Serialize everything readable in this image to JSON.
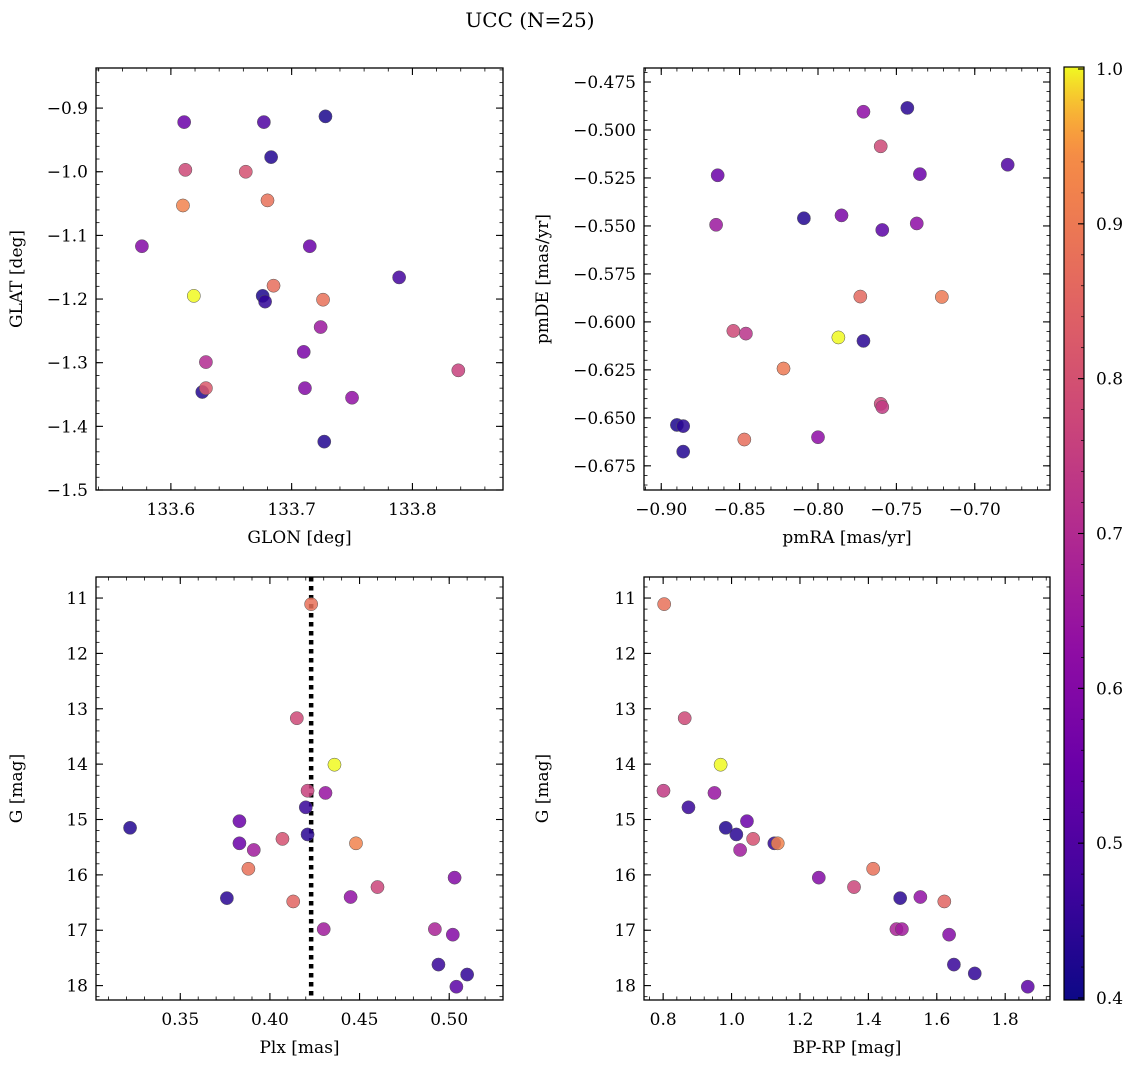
{
  "title": "UCC (N=25)",
  "colorbar": {
    "range": [
      0.4,
      1.0
    ],
    "ticks": [
      0.4,
      0.5,
      0.6,
      0.7,
      0.8,
      0.9,
      1.0
    ],
    "tick_labels": [
      "0.4",
      "0.5",
      "0.6",
      "0.7",
      "0.8",
      "0.9",
      "1.0"
    ],
    "colormap": "plasma"
  },
  "chart_data": [
    {
      "type": "scatter",
      "xlabel": "GLON [deg]",
      "ylabel": "GLAT [deg]",
      "xlim": [
        133.538,
        133.875
      ],
      "ylim": [
        -1.5,
        -0.837
      ],
      "y_inverted": false,
      "xticks": [
        133.6,
        133.7,
        133.8
      ],
      "xtick_labels": [
        "133.6",
        "133.7",
        "133.8"
      ],
      "yticks": [
        -1.5,
        -1.4,
        -1.3,
        -1.2,
        -1.1,
        -1.0,
        -0.9
      ],
      "ytick_labels": [
        "−1.5",
        "−1.4",
        "−1.3",
        "−1.2",
        "−1.1",
        "−1.0",
        "−0.9"
      ],
      "points": [
        {
          "x": 133.611,
          "y": -0.922,
          "c": 0.55
        },
        {
          "x": 133.677,
          "y": -0.922,
          "c": 0.5
        },
        {
          "x": 133.728,
          "y": -0.913,
          "c": 0.42
        },
        {
          "x": 133.683,
          "y": -0.977,
          "c": 0.43
        },
        {
          "x": 133.612,
          "y": -0.997,
          "c": 0.78
        },
        {
          "x": 133.662,
          "y": -1.0,
          "c": 0.8
        },
        {
          "x": 133.61,
          "y": -1.053,
          "c": 0.92
        },
        {
          "x": 133.68,
          "y": -1.045,
          "c": 0.88
        },
        {
          "x": 133.576,
          "y": -1.117,
          "c": 0.6
        },
        {
          "x": 133.715,
          "y": -1.117,
          "c": 0.55
        },
        {
          "x": 133.619,
          "y": -1.195,
          "c": 1.0
        },
        {
          "x": 133.676,
          "y": -1.195,
          "c": 0.42
        },
        {
          "x": 133.678,
          "y": -1.204,
          "c": 0.45
        },
        {
          "x": 133.685,
          "y": -1.179,
          "c": 0.87
        },
        {
          "x": 133.726,
          "y": -1.201,
          "c": 0.88
        },
        {
          "x": 133.789,
          "y": -1.166,
          "c": 0.48
        },
        {
          "x": 133.724,
          "y": -1.244,
          "c": 0.65
        },
        {
          "x": 133.71,
          "y": -1.283,
          "c": 0.58
        },
        {
          "x": 133.629,
          "y": -1.299,
          "c": 0.7
        },
        {
          "x": 133.838,
          "y": -1.312,
          "c": 0.76
        },
        {
          "x": 133.626,
          "y": -1.346,
          "c": 0.43
        },
        {
          "x": 133.629,
          "y": -1.34,
          "c": 0.82
        },
        {
          "x": 133.711,
          "y": -1.34,
          "c": 0.6
        },
        {
          "x": 133.75,
          "y": -1.355,
          "c": 0.63
        },
        {
          "x": 133.727,
          "y": -1.424,
          "c": 0.43
        }
      ]
    },
    {
      "type": "scatter",
      "xlabel": "pmRA [mas/yr]",
      "ylabel": "pmDE [mas/yr]",
      "xlim": [
        -0.911,
        -0.652
      ],
      "ylim": [
        -0.6876,
        -0.4677
      ],
      "y_inverted": false,
      "xticks": [
        -0.9,
        -0.85,
        -0.8,
        -0.75,
        -0.7
      ],
      "xtick_labels": [
        "−0.90",
        "−0.85",
        "−0.80",
        "−0.75",
        "−0.70"
      ],
      "yticks": [
        -0.675,
        -0.65,
        -0.625,
        -0.6,
        -0.575,
        -0.55,
        -0.525,
        -0.5,
        -0.475
      ],
      "ytick_labels": [
        "−0.675",
        "−0.650",
        "−0.625",
        "−0.600",
        "−0.575",
        "−0.550",
        "−0.525",
        "−0.500",
        "−0.475"
      ],
      "points": [
        {
          "x": -0.771,
          "y": -0.4905,
          "c": 0.62
        },
        {
          "x": -0.743,
          "y": -0.4885,
          "c": 0.44
        },
        {
          "x": -0.76,
          "y": -0.5085,
          "c": 0.78
        },
        {
          "x": -0.679,
          "y": -0.5181,
          "c": 0.5
        },
        {
          "x": -0.864,
          "y": -0.5236,
          "c": 0.55
        },
        {
          "x": -0.735,
          "y": -0.523,
          "c": 0.55
        },
        {
          "x": -0.809,
          "y": -0.546,
          "c": 0.43
        },
        {
          "x": -0.785,
          "y": -0.5445,
          "c": 0.58
        },
        {
          "x": -0.865,
          "y": -0.5494,
          "c": 0.65
        },
        {
          "x": -0.759,
          "y": -0.5521,
          "c": 0.52
        },
        {
          "x": -0.737,
          "y": -0.5487,
          "c": 0.62
        },
        {
          "x": -0.773,
          "y": -0.5868,
          "c": 0.86
        },
        {
          "x": -0.721,
          "y": -0.587,
          "c": 0.9
        },
        {
          "x": -0.854,
          "y": -0.6047,
          "c": 0.78
        },
        {
          "x": -0.846,
          "y": -0.6061,
          "c": 0.72
        },
        {
          "x": -0.787,
          "y": -0.6081,
          "c": 1.0
        },
        {
          "x": -0.771,
          "y": -0.6099,
          "c": 0.44
        },
        {
          "x": -0.822,
          "y": -0.6243,
          "c": 0.9
        },
        {
          "x": -0.76,
          "y": -0.6427,
          "c": 0.77
        },
        {
          "x": -0.759,
          "y": -0.6444,
          "c": 0.74
        },
        {
          "x": -0.89,
          "y": -0.6537,
          "c": 0.42
        },
        {
          "x": -0.886,
          "y": -0.6543,
          "c": 0.44
        },
        {
          "x": -0.8,
          "y": -0.6601,
          "c": 0.62
        },
        {
          "x": -0.847,
          "y": -0.6613,
          "c": 0.87
        },
        {
          "x": -0.886,
          "y": -0.6676,
          "c": 0.43
        }
      ]
    },
    {
      "type": "scatter",
      "xlabel": "Plx [mas]",
      "ylabel": "G [mag]",
      "xlim": [
        0.303,
        0.53
      ],
      "ylim": [
        18.26,
        10.62
      ],
      "y_inverted": true,
      "xticks": [
        0.35,
        0.4,
        0.45,
        0.5
      ],
      "xtick_labels": [
        "0.35",
        "0.40",
        "0.45",
        "0.50"
      ],
      "yticks": [
        11,
        12,
        13,
        14,
        15,
        16,
        17,
        18
      ],
      "ytick_labels": [
        "11",
        "12",
        "13",
        "14",
        "15",
        "16",
        "17",
        "18"
      ],
      "vline": {
        "x": 0.423,
        "style": "dotted"
      },
      "points": [
        {
          "x": 0.423,
          "y": 11.11,
          "c": 0.88
        },
        {
          "x": 0.415,
          "y": 13.17,
          "c": 0.78
        },
        {
          "x": 0.436,
          "y": 14.01,
          "c": 1.0
        },
        {
          "x": 0.421,
          "y": 14.48,
          "c": 0.76
        },
        {
          "x": 0.431,
          "y": 14.52,
          "c": 0.64
        },
        {
          "x": 0.42,
          "y": 14.78,
          "c": 0.46
        },
        {
          "x": 0.322,
          "y": 15.15,
          "c": 0.43
        },
        {
          "x": 0.383,
          "y": 15.03,
          "c": 0.55
        },
        {
          "x": 0.421,
          "y": 15.27,
          "c": 0.44
        },
        {
          "x": 0.407,
          "y": 15.35,
          "c": 0.8
        },
        {
          "x": 0.383,
          "y": 15.43,
          "c": 0.55
        },
        {
          "x": 0.448,
          "y": 15.43,
          "c": 0.92
        },
        {
          "x": 0.391,
          "y": 15.55,
          "c": 0.66
        },
        {
          "x": 0.388,
          "y": 15.89,
          "c": 0.88
        },
        {
          "x": 0.503,
          "y": 16.05,
          "c": 0.6
        },
        {
          "x": 0.46,
          "y": 16.22,
          "c": 0.77
        },
        {
          "x": 0.376,
          "y": 16.42,
          "c": 0.44
        },
        {
          "x": 0.445,
          "y": 16.4,
          "c": 0.63
        },
        {
          "x": 0.413,
          "y": 16.48,
          "c": 0.85
        },
        {
          "x": 0.492,
          "y": 16.98,
          "c": 0.68
        },
        {
          "x": 0.43,
          "y": 16.98,
          "c": 0.66
        },
        {
          "x": 0.502,
          "y": 17.08,
          "c": 0.6
        },
        {
          "x": 0.494,
          "y": 17.62,
          "c": 0.46
        },
        {
          "x": 0.51,
          "y": 17.8,
          "c": 0.45
        },
        {
          "x": 0.504,
          "y": 18.02,
          "c": 0.52
        }
      ]
    },
    {
      "type": "scatter",
      "xlabel": "BP-RP [mag]",
      "ylabel": "G [mag]",
      "xlim": [
        0.744,
        1.931
      ],
      "ylim": [
        18.26,
        10.62
      ],
      "y_inverted": true,
      "xticks": [
        0.8,
        1.0,
        1.2,
        1.4,
        1.6,
        1.8
      ],
      "xtick_labels": [
        "0.8",
        "1.0",
        "1.2",
        "1.4",
        "1.6",
        "1.8"
      ],
      "yticks": [
        11,
        12,
        13,
        14,
        15,
        16,
        17,
        18
      ],
      "ytick_labels": [
        "11",
        "12",
        "13",
        "14",
        "15",
        "16",
        "17",
        "18"
      ],
      "points": [
        {
          "x": 0.803,
          "y": 11.11,
          "c": 0.88
        },
        {
          "x": 0.863,
          "y": 13.17,
          "c": 0.78
        },
        {
          "x": 0.968,
          "y": 14.01,
          "c": 1.0
        },
        {
          "x": 0.801,
          "y": 14.48,
          "c": 0.74
        },
        {
          "x": 0.95,
          "y": 14.52,
          "c": 0.64
        },
        {
          "x": 0.874,
          "y": 14.78,
          "c": 0.46
        },
        {
          "x": 1.045,
          "y": 15.03,
          "c": 0.55
        },
        {
          "x": 0.983,
          "y": 15.15,
          "c": 0.43
        },
        {
          "x": 1.014,
          "y": 15.27,
          "c": 0.44
        },
        {
          "x": 1.063,
          "y": 15.35,
          "c": 0.8
        },
        {
          "x": 1.125,
          "y": 15.43,
          "c": 0.45
        },
        {
          "x": 1.135,
          "y": 15.43,
          "c": 0.92
        },
        {
          "x": 1.025,
          "y": 15.55,
          "c": 0.66
        },
        {
          "x": 1.414,
          "y": 15.89,
          "c": 0.88
        },
        {
          "x": 1.255,
          "y": 16.05,
          "c": 0.6
        },
        {
          "x": 1.358,
          "y": 16.22,
          "c": 0.77
        },
        {
          "x": 1.552,
          "y": 16.4,
          "c": 0.63
        },
        {
          "x": 1.493,
          "y": 16.42,
          "c": 0.44
        },
        {
          "x": 1.622,
          "y": 16.48,
          "c": 0.85
        },
        {
          "x": 1.482,
          "y": 16.98,
          "c": 0.68
        },
        {
          "x": 1.498,
          "y": 16.98,
          "c": 0.66
        },
        {
          "x": 1.636,
          "y": 17.08,
          "c": 0.6
        },
        {
          "x": 1.65,
          "y": 17.62,
          "c": 0.46
        },
        {
          "x": 1.711,
          "y": 17.78,
          "c": 0.45
        },
        {
          "x": 1.866,
          "y": 18.02,
          "c": 0.52
        }
      ]
    }
  ]
}
